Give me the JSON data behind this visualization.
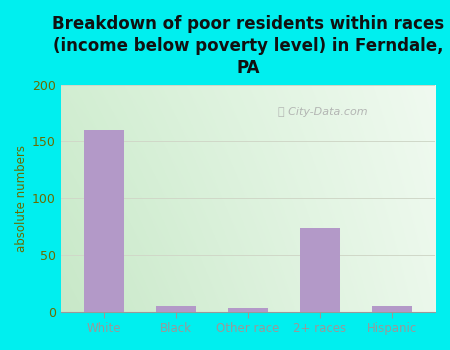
{
  "title": "Breakdown of poor residents within races\n(income below poverty level) in Ferndale,\nPA",
  "categories": [
    "White",
    "Black",
    "Other race",
    "2+ races",
    "Hispanic"
  ],
  "values": [
    160,
    5,
    3,
    74,
    5
  ],
  "bar_color": "#b399c8",
  "ylabel": "absolute numbers",
  "ylim": [
    0,
    200
  ],
  "yticks": [
    0,
    50,
    100,
    150,
    200
  ],
  "background_outer": "#00efef",
  "title_fontsize": 12,
  "title_color": "#111111",
  "axis_label_color": "#6b6b00",
  "tick_label_color": "#6b6b00",
  "watermark_text": "City-Data.com",
  "watermark_color": "#aaaaaa",
  "grid_color": "#d0d8c8",
  "plot_bg_left": "#c8e8c0",
  "plot_bg_right": "#f0f8f0"
}
